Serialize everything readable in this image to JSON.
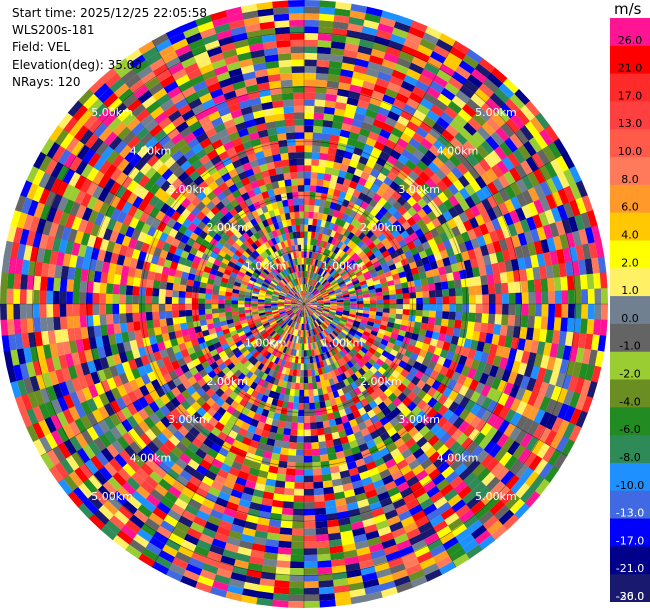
{
  "header": {
    "start_time": "Start time: 2025/12/25 22:05:58",
    "instrument": "WLS200s-181",
    "field": "Field: VEL",
    "elevation": "Elevation(deg): 35.00",
    "nrays": "NRays: 120"
  },
  "colorbar": {
    "unit": "m/s",
    "ticks": [
      "26.0",
      "21.0",
      "17.0",
      "13.0",
      "10.0",
      "8.0",
      "6.0",
      "4.0",
      "2.0",
      "1.0",
      "0.0",
      "-1.0",
      "-2.0",
      "-4.0",
      "-6.0",
      "-8.0",
      "-10.0",
      "-13.0",
      "-17.0",
      "-21.0",
      "-26.0",
      "-30.0"
    ],
    "colors": [
      "#ff1493",
      "#ff0000",
      "#ff2a2a",
      "#ff4040",
      "#ff5a4a",
      "#ff7a5a",
      "#ff9a2a",
      "#ffc800",
      "#ffff00",
      "#fff066",
      "#708090",
      "#646464",
      "#9acd32",
      "#6b8e23",
      "#228b22",
      "#2e8b57",
      "#1e90ff",
      "#4169e1",
      "#0000ff",
      "#00008b",
      "#191970"
    ]
  },
  "chart_data": {
    "type": "heatmap",
    "projection": "polar",
    "field": "VEL",
    "nrays": 120,
    "range_rings_km": [
      1.0,
      2.0,
      3.0,
      4.0,
      5.0
    ],
    "range_labels": [
      "1.00km",
      "2.00km",
      "3.00km",
      "4.00km",
      "5.00km"
    ],
    "max_range_km": 5.6,
    "value_range": [
      -30.0,
      26.0
    ]
  }
}
